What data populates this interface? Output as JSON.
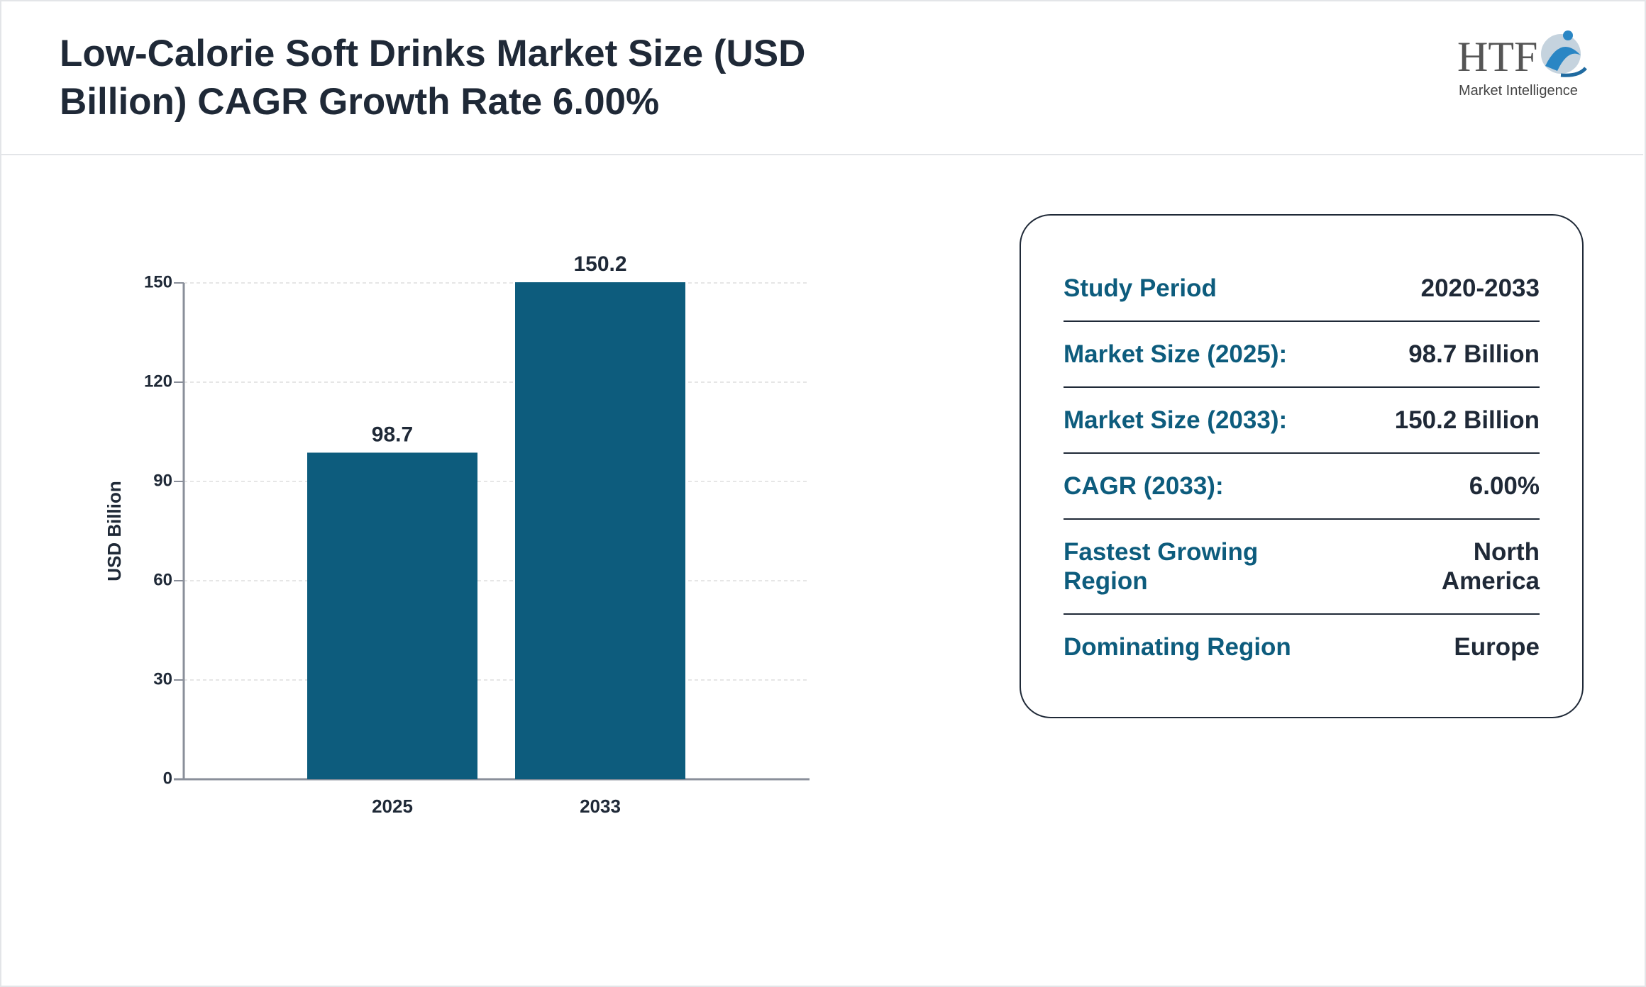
{
  "header": {
    "title": "Low-Calorie Soft Drinks Market Size (USD Billion) CAGR Growth Rate 6.00%",
    "logo": {
      "mark": "HTF",
      "tagline": "Market Intelligence"
    }
  },
  "chart_data": {
    "type": "bar",
    "y_label": "USD Billion",
    "categories": [
      "2025",
      "2033"
    ],
    "values": [
      98.7,
      150.2
    ],
    "color": "#0d5c7d",
    "ylim": [
      0,
      150
    ],
    "yticks": [
      0,
      30,
      60,
      90,
      120,
      150
    ],
    "grid": true
  },
  "info": {
    "rows": [
      {
        "label": "Study Period",
        "value": "2020-2033"
      },
      {
        "label": "Market Size (2025):",
        "value": "98.7 Billion"
      },
      {
        "label": "Market Size (2033):",
        "value": "150.2 Billion"
      },
      {
        "label": "CAGR (2033):",
        "value": "6.00%"
      },
      {
        "label": "Fastest Growing Region",
        "value": "North America"
      },
      {
        "label": "Dominating Region",
        "value": "Europe"
      }
    ]
  }
}
